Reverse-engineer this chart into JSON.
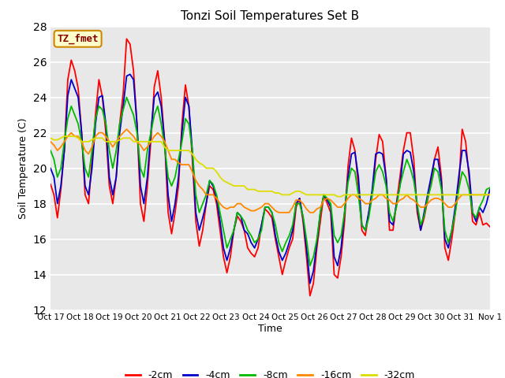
{
  "title": "Tonzi Soil Temperatures Set B",
  "xlabel": "Time",
  "ylabel": "Soil Temperature (C)",
  "ylim": [
    12,
    28
  ],
  "yticks": [
    12,
    14,
    16,
    18,
    20,
    22,
    24,
    26,
    28
  ],
  "background_color": "#ffffff",
  "plot_bg_color": "#e8e8e8",
  "legend_label": "TZ_fmet",
  "series_colors": [
    "#ff0000",
    "#0000cc",
    "#00bb00",
    "#ff8800",
    "#dddd00"
  ],
  "series_labels": [
    "-2cm",
    "-4cm",
    "-8cm",
    "-16cm",
    "-32cm"
  ],
  "xtick_labels": [
    "Oct 17",
    "Oct 18",
    "Oct 19",
    "Oct 20",
    "Oct 21",
    "Oct 22",
    "Oct 23",
    "Oct 24",
    "Oct 25",
    "Oct 26",
    "Oct 27",
    "Oct 28",
    "Oct 29",
    "Oct 30",
    "Oct 31",
    "Nov 1"
  ],
  "series_2cm": [
    19.1,
    18.5,
    17.2,
    18.8,
    21.0,
    25.0,
    26.1,
    25.5,
    24.5,
    22.0,
    18.5,
    18.0,
    20.5,
    23.0,
    25.0,
    24.0,
    22.0,
    19.0,
    18.0,
    19.5,
    22.5,
    24.2,
    27.3,
    27.0,
    25.5,
    22.5,
    18.0,
    17.0,
    19.0,
    21.5,
    24.6,
    25.5,
    24.0,
    21.5,
    17.5,
    16.3,
    17.5,
    19.0,
    22.5,
    24.7,
    23.5,
    20.5,
    17.0,
    15.6,
    16.5,
    18.0,
    19.0,
    18.8,
    18.0,
    16.5,
    15.0,
    14.1,
    15.0,
    16.5,
    17.3,
    17.0,
    16.5,
    15.5,
    15.2,
    15.0,
    15.5,
    16.8,
    17.7,
    17.5,
    17.2,
    16.0,
    15.0,
    14.0,
    14.8,
    15.5,
    16.0,
    17.8,
    18.3,
    17.0,
    15.0,
    12.8,
    13.5,
    15.5,
    17.0,
    18.5,
    18.0,
    17.5,
    14.0,
    13.8,
    15.0,
    17.0,
    20.1,
    21.7,
    21.0,
    19.0,
    16.5,
    16.2,
    17.5,
    18.5,
    20.5,
    21.9,
    21.5,
    19.5,
    16.5,
    16.5,
    18.0,
    19.5,
    21.0,
    22.0,
    22.0,
    20.5,
    17.5,
    16.5,
    17.2,
    18.2,
    19.2,
    20.5,
    21.2,
    19.5,
    15.5,
    14.8,
    16.0,
    17.5,
    19.0,
    22.2,
    21.5,
    19.5,
    17.0,
    16.8,
    17.5,
    16.8,
    16.9,
    16.7
  ],
  "series_4cm": [
    20.0,
    19.5,
    18.0,
    19.0,
    21.0,
    24.1,
    25.0,
    24.5,
    24.0,
    22.0,
    19.0,
    18.5,
    20.0,
    22.5,
    24.0,
    24.1,
    22.5,
    19.5,
    18.5,
    19.5,
    22.0,
    23.5,
    25.2,
    25.3,
    25.0,
    22.5,
    19.0,
    18.0,
    19.5,
    22.0,
    24.0,
    24.3,
    23.5,
    21.5,
    18.5,
    17.0,
    18.0,
    19.5,
    22.0,
    24.0,
    23.5,
    21.0,
    17.5,
    16.5,
    17.2,
    18.0,
    19.3,
    19.0,
    18.3,
    17.0,
    15.5,
    14.8,
    15.5,
    16.5,
    17.5,
    17.3,
    16.5,
    16.3,
    15.8,
    15.5,
    16.0,
    16.8,
    17.8,
    17.8,
    17.5,
    16.2,
    15.3,
    14.8,
    15.2,
    15.8,
    16.5,
    18.0,
    18.3,
    17.2,
    15.5,
    13.5,
    14.2,
    15.8,
    17.5,
    18.5,
    18.2,
    17.8,
    15.0,
    14.5,
    15.5,
    17.5,
    19.5,
    20.8,
    20.9,
    19.5,
    16.8,
    16.5,
    17.5,
    18.8,
    20.8,
    20.9,
    20.8,
    19.5,
    17.0,
    16.8,
    18.0,
    19.0,
    20.8,
    21.0,
    20.9,
    19.8,
    17.8,
    16.5,
    17.5,
    18.5,
    19.5,
    20.5,
    20.5,
    19.2,
    16.0,
    15.5,
    16.5,
    17.8,
    19.5,
    21.0,
    21.0,
    19.8,
    17.5,
    17.0,
    17.8,
    17.5,
    18.0,
    18.8
  ],
  "series_8cm": [
    21.0,
    20.5,
    19.5,
    20.0,
    21.5,
    22.8,
    23.5,
    23.0,
    22.5,
    21.5,
    20.0,
    19.5,
    21.0,
    22.8,
    23.5,
    23.3,
    22.5,
    21.0,
    20.0,
    21.0,
    22.5,
    23.3,
    24.0,
    23.5,
    23.0,
    22.0,
    20.0,
    19.5,
    21.0,
    22.0,
    23.0,
    23.5,
    22.5,
    21.2,
    19.5,
    19.0,
    19.5,
    20.5,
    21.5,
    22.8,
    22.5,
    21.0,
    18.5,
    17.5,
    18.0,
    18.5,
    19.3,
    19.1,
    18.5,
    17.5,
    16.5,
    15.5,
    16.0,
    16.5,
    17.5,
    17.3,
    17.0,
    16.5,
    16.2,
    15.8,
    16.0,
    16.5,
    17.8,
    17.8,
    17.5,
    16.8,
    15.8,
    15.3,
    15.8,
    16.2,
    16.8,
    18.0,
    18.0,
    17.3,
    16.0,
    14.5,
    15.0,
    16.0,
    17.5,
    18.5,
    18.3,
    18.0,
    16.2,
    15.8,
    16.2,
    17.5,
    19.2,
    20.0,
    19.8,
    18.5,
    16.8,
    16.5,
    17.2,
    18.5,
    19.8,
    20.2,
    19.8,
    19.0,
    17.5,
    17.0,
    17.8,
    19.0,
    19.8,
    20.5,
    20.0,
    19.3,
    18.0,
    16.8,
    17.3,
    18.3,
    19.0,
    20.0,
    19.8,
    18.8,
    16.5,
    15.8,
    16.5,
    17.5,
    18.8,
    19.8,
    19.5,
    18.8,
    17.5,
    17.2,
    17.8,
    18.2,
    18.8,
    18.9
  ],
  "series_16cm": [
    21.5,
    21.3,
    21.0,
    21.2,
    21.5,
    21.8,
    22.0,
    21.8,
    21.8,
    21.5,
    21.0,
    20.8,
    21.2,
    21.8,
    22.0,
    22.0,
    21.8,
    21.5,
    21.2,
    21.5,
    21.8,
    22.0,
    22.2,
    22.0,
    21.8,
    21.5,
    21.3,
    21.0,
    21.2,
    21.5,
    21.8,
    22.0,
    21.8,
    21.5,
    21.0,
    20.5,
    20.5,
    20.3,
    20.2,
    20.2,
    20.2,
    19.8,
    19.3,
    19.0,
    18.8,
    18.5,
    18.5,
    18.5,
    18.3,
    18.0,
    17.8,
    17.7,
    17.8,
    17.8,
    18.0,
    18.0,
    17.8,
    17.7,
    17.6,
    17.6,
    17.7,
    17.8,
    18.0,
    18.0,
    17.8,
    17.6,
    17.5,
    17.5,
    17.5,
    17.5,
    17.8,
    18.2,
    18.2,
    18.0,
    17.7,
    17.5,
    17.5,
    17.7,
    17.8,
    18.2,
    18.3,
    18.2,
    18.0,
    17.8,
    17.8,
    18.0,
    18.3,
    18.5,
    18.5,
    18.3,
    18.2,
    18.0,
    18.0,
    18.2,
    18.3,
    18.5,
    18.5,
    18.3,
    18.2,
    18.0,
    18.0,
    18.2,
    18.3,
    18.5,
    18.3,
    18.2,
    18.0,
    17.8,
    17.8,
    18.0,
    18.2,
    18.3,
    18.3,
    18.2,
    18.0,
    17.8,
    17.8,
    18.0,
    18.3,
    18.5,
    18.5,
    18.5,
    18.5,
    18.5,
    18.5,
    18.5,
    18.5,
    18.5
  ],
  "series_32cm": [
    21.7,
    21.6,
    21.6,
    21.7,
    21.8,
    21.8,
    21.8,
    21.8,
    21.7,
    21.5,
    21.5,
    21.5,
    21.6,
    21.7,
    21.7,
    21.7,
    21.5,
    21.5,
    21.5,
    21.5,
    21.6,
    21.7,
    21.7,
    21.7,
    21.5,
    21.5,
    21.5,
    21.5,
    21.5,
    21.5,
    21.5,
    21.5,
    21.5,
    21.2,
    21.0,
    21.0,
    21.0,
    21.0,
    21.0,
    21.0,
    21.0,
    20.8,
    20.5,
    20.3,
    20.2,
    20.0,
    20.0,
    20.0,
    19.8,
    19.5,
    19.3,
    19.2,
    19.1,
    19.0,
    19.0,
    19.0,
    19.0,
    18.8,
    18.8,
    18.8,
    18.7,
    18.7,
    18.7,
    18.7,
    18.7,
    18.6,
    18.6,
    18.5,
    18.5,
    18.5,
    18.6,
    18.7,
    18.7,
    18.6,
    18.5,
    18.5,
    18.5,
    18.5,
    18.5,
    18.5,
    18.5,
    18.5,
    18.5,
    18.4,
    18.4,
    18.5,
    18.5,
    18.5,
    18.5,
    18.5,
    18.5,
    18.5,
    18.5,
    18.5,
    18.5,
    18.5,
    18.5,
    18.5,
    18.5,
    18.5,
    18.5,
    18.5,
    18.5,
    18.5,
    18.5,
    18.5,
    18.5,
    18.5,
    18.5,
    18.5,
    18.5,
    18.5,
    18.5,
    18.5,
    18.5,
    18.5,
    18.5,
    18.5,
    18.5,
    18.5,
    18.5,
    18.5,
    18.5,
    18.5,
    18.5,
    18.5,
    18.5,
    18.5
  ]
}
